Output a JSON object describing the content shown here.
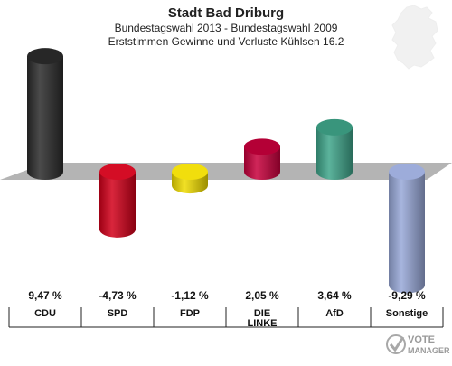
{
  "header": {
    "title": "Stadt Bad Driburg",
    "subtitle_1": "Bundestagswahl 2013 - Bundestagswahl 2009",
    "subtitle_2": "Erststimmen Gewinne und Verluste Kühlsen 16.2"
  },
  "chart_data": {
    "type": "bar",
    "title": "Stadt Bad Driburg",
    "subtitle": "Bundestagswahl 2013 - Bundestagswahl 2009 / Erststimmen Gewinne und Verluste Kühlsen 16.2",
    "categories": [
      "CDU",
      "SPD",
      "FDP",
      "DIE LINKE",
      "AfD",
      "Sonstige"
    ],
    "category_lines": [
      [
        "CDU"
      ],
      [
        "SPD"
      ],
      [
        "FDP"
      ],
      [
        "DIE",
        "LINKE"
      ],
      [
        "AfD"
      ],
      [
        "Sonstige"
      ]
    ],
    "values": [
      9.47,
      -4.73,
      -1.12,
      2.05,
      3.64,
      -9.29
    ],
    "value_labels": [
      "9,47 %",
      "-4,73 %",
      "-1,12 %",
      "2,05 %",
      "3,64 %",
      "-9,29 %"
    ],
    "colors": [
      "#2b2b2b",
      "#d2001a",
      "#f0dc00",
      "#c8003c",
      "#3fa58a",
      "#98a8d8"
    ],
    "ylim": [
      -10,
      10
    ],
    "xlabel": "",
    "ylabel": "",
    "grid": false,
    "legend": "none"
  },
  "logo": {
    "line_1": "VOTE",
    "line_2": "MANAGER"
  }
}
